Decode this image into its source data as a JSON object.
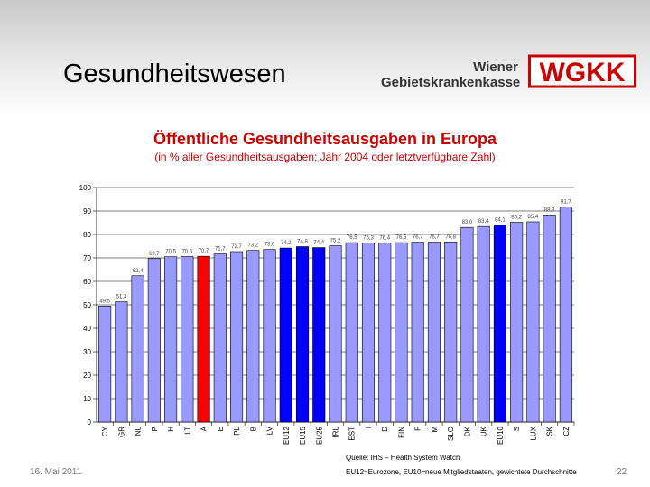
{
  "header": {
    "title": "Gesundheitswesen",
    "org_line1": "Wiener",
    "org_line2": "Gebietskrankenkasse",
    "logo_text": "WGKK"
  },
  "colors": {
    "bar_default": "#9999ff",
    "bar_highlight": "#ff0000",
    "bar_eu": "#0000ff",
    "title": "#cc0000"
  },
  "chart_data": {
    "type": "bar",
    "title": "Öffentliche Gesundheitsausgaben in Europa",
    "subtitle": "(in % aller Gesundheitsausgaben; Jahr 2004 oder letztverfügbare Zahl)",
    "ylim": [
      0,
      100
    ],
    "yticks": [
      0,
      10,
      20,
      30,
      40,
      50,
      60,
      70,
      80,
      90,
      100
    ],
    "grid": true,
    "categories": [
      "CY",
      "GR",
      "NL",
      "P",
      "H",
      "LT",
      "A",
      "E",
      "PL",
      "B",
      "LV",
      "EU12",
      "EU15",
      "EU25",
      "IRL",
      "EST",
      "I",
      "D",
      "FIN",
      "F",
      "M",
      "SLO",
      "DK",
      "UK",
      "EU10",
      "S",
      "LUX",
      "SK",
      "CZ"
    ],
    "values": [
      49.5,
      51.3,
      62.4,
      69.7,
      70.5,
      70.6,
      70.7,
      71.7,
      72.7,
      73.2,
      73.6,
      74.2,
      74.8,
      74.4,
      75.2,
      76.5,
      76.3,
      76.4,
      76.5,
      76.7,
      76.7,
      76.8,
      83.0,
      83.4,
      84.1,
      85.2,
      85.4,
      88.3,
      91.7
    ],
    "value_labels": [
      "49,5",
      "51,3",
      "62,4",
      "69,7",
      "70,5",
      "70,6",
      "70,7",
      "71,7",
      "72,7",
      "73,2",
      "73,6",
      "74,2",
      "74,8",
      "74,4",
      "75,2",
      "76,5",
      "76,3",
      "76,4",
      "76,5",
      "76,7",
      "76,7",
      "76,8",
      "83,0",
      "83,4",
      "84,1",
      "85,2",
      "85,4",
      "88,3",
      "91,7"
    ],
    "highlight": [
      "A"
    ],
    "eu_aggregates": [
      "EU12",
      "EU15",
      "EU25",
      "EU10"
    ]
  },
  "footer": {
    "date": "16. Mai 2011",
    "source": "Quelle: IHS – Health System Watch",
    "note": "EU12=Eurozone, EU10=neue Mitgliedstaaten, gewichtete Durchschnitte",
    "page": "22"
  }
}
